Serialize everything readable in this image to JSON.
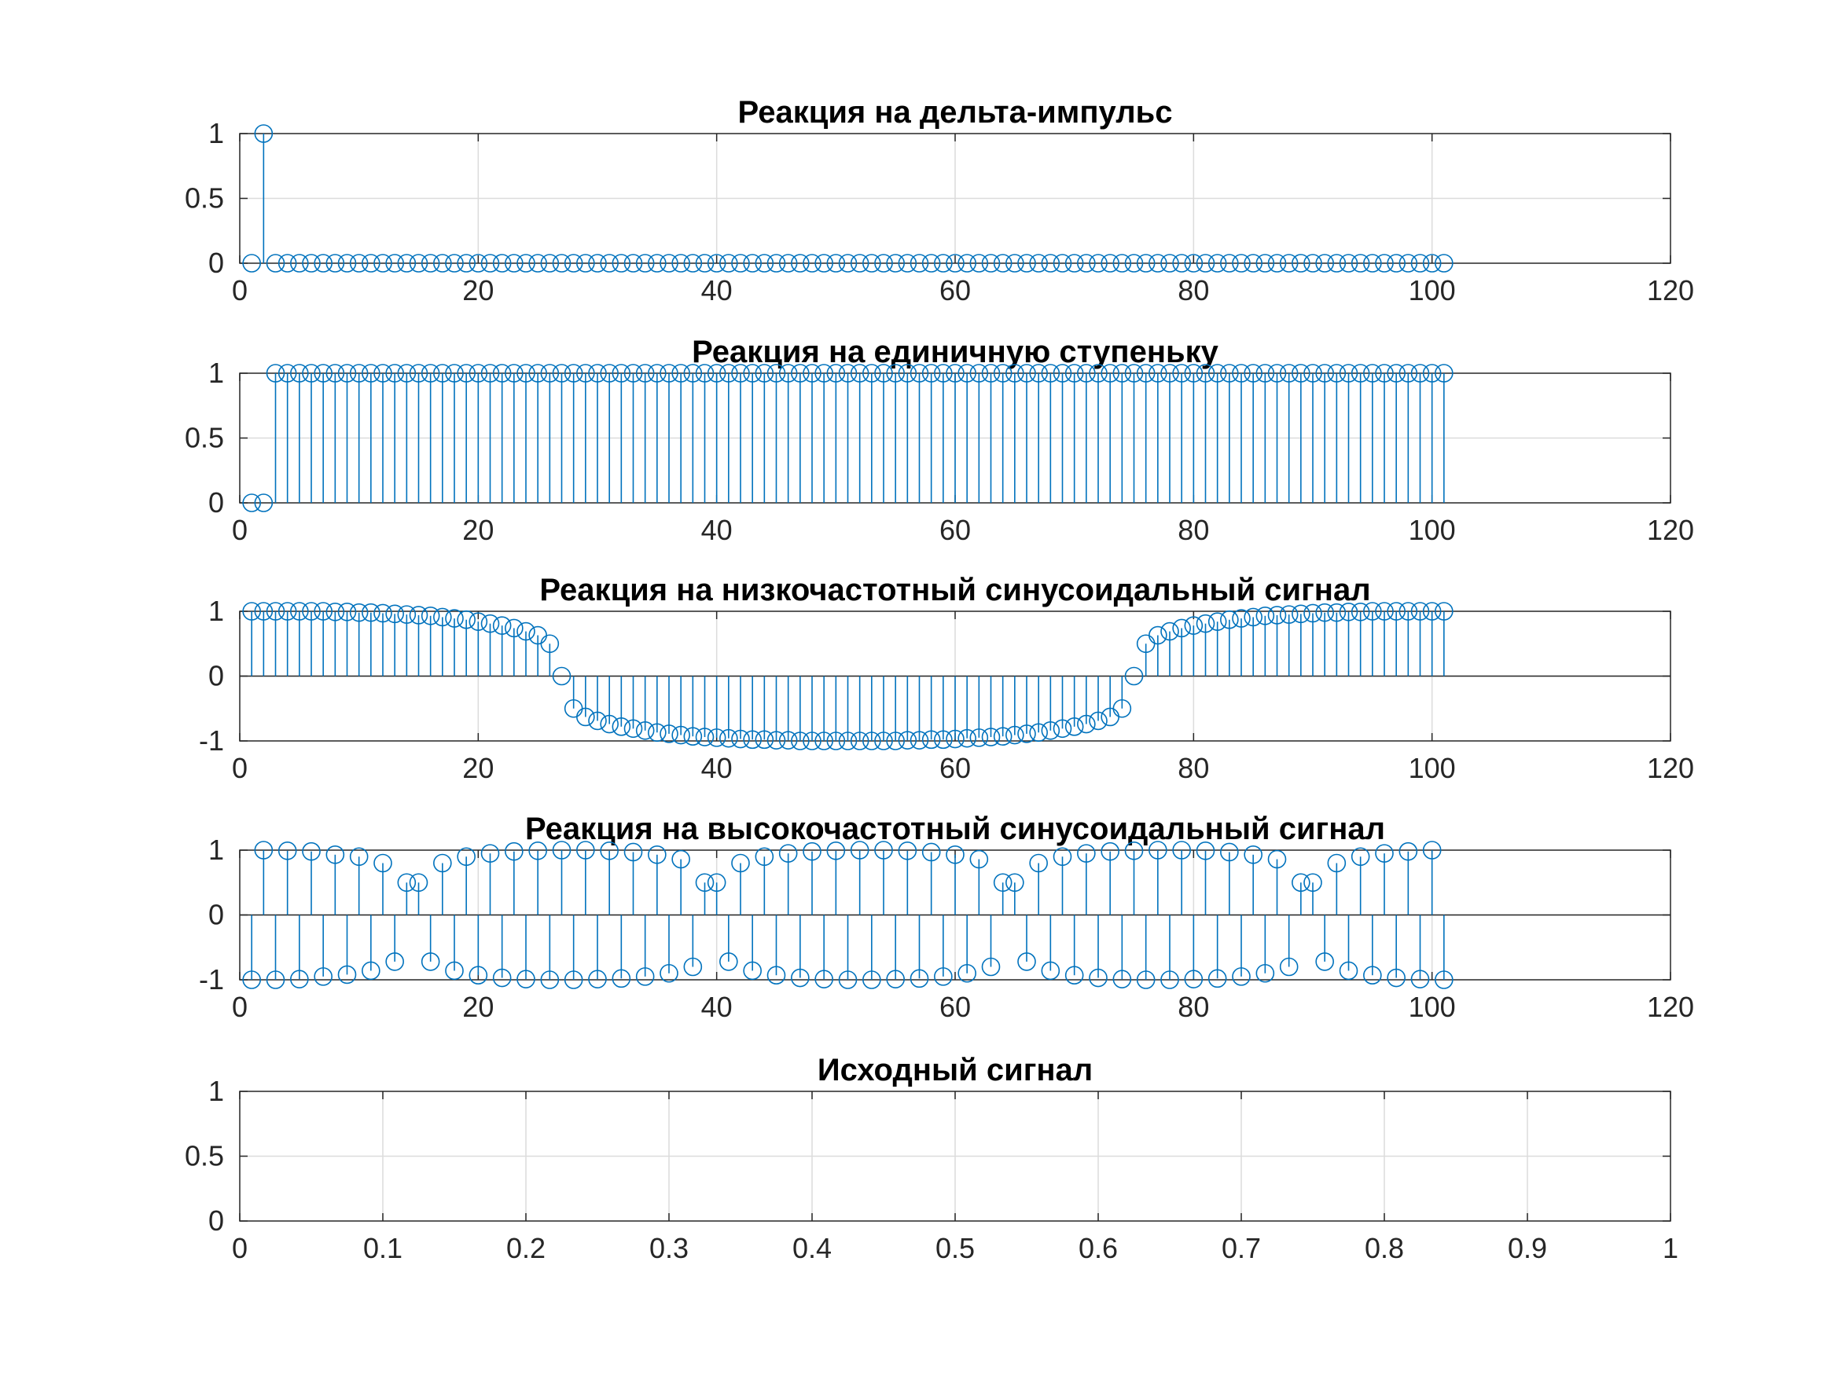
{
  "figure": {
    "background": "#ffffff",
    "series_color": "#0072bd",
    "grid_color": "#dcdcdc",
    "axis_color": "#262626"
  },
  "chart_data": [
    {
      "type": "stem",
      "title": "Реакция на дельта-импульс",
      "xlim": [
        0,
        120
      ],
      "ylim": [
        0,
        1
      ],
      "xticks": [
        "0",
        "20",
        "40",
        "60",
        "80",
        "100",
        "120"
      ],
      "yticks": [
        "0",
        "0.5",
        "1"
      ],
      "grid": true,
      "series": [
        {
          "x_start": 1,
          "x_end": 101,
          "values": [
            0,
            1
          ]
        }
      ],
      "rule": "delta: value at x=2 is 1, all others 0"
    },
    {
      "type": "stem",
      "title": "Реакция на единичную ступеньку",
      "xlim": [
        0,
        120
      ],
      "ylim": [
        0,
        1
      ],
      "xticks": [
        "0",
        "20",
        "40",
        "60",
        "80",
        "100",
        "120"
      ],
      "yticks": [
        "0",
        "0.5",
        "1"
      ],
      "grid": true,
      "series": [
        {
          "x_start": 1,
          "x_end": 101,
          "values": [
            0,
            0,
            1
          ]
        }
      ],
      "rule": "step: 0 at x=1,2; 1 for x>=3"
    },
    {
      "type": "stem",
      "title": "Реакция на низкочастотный синусоидальный сигнал",
      "xlim": [
        0,
        120
      ],
      "ylim": [
        -1,
        1
      ],
      "xticks": [
        "0",
        "20",
        "40",
        "60",
        "80",
        "100",
        "120"
      ],
      "yticks": [
        "-1",
        "0",
        "1"
      ],
      "grid": true,
      "series": [
        {
          "x_start": 1,
          "x_end": 101,
          "values": [
            1.0,
            1.0,
            1.0,
            1.0,
            1.0,
            1.0,
            1.0,
            0.99,
            0.99,
            0.98,
            0.98,
            0.97,
            0.96,
            0.95,
            0.94,
            0.93,
            0.91,
            0.89,
            0.87,
            0.84,
            0.81,
            0.78,
            0.74,
            0.69,
            0.63,
            0.5,
            0.0,
            -0.5,
            -0.63,
            -0.69,
            -0.74,
            -0.78,
            -0.81,
            -0.84,
            -0.87,
            -0.89,
            -0.91,
            -0.93,
            -0.94,
            -0.95,
            -0.96,
            -0.97,
            -0.98,
            -0.98,
            -0.99,
            -0.99,
            -1.0,
            -1.0,
            -1.0,
            -1.0,
            -1.0,
            -1.0,
            -1.0,
            -1.0,
            -1.0,
            -0.99,
            -0.99,
            -0.98,
            -0.98,
            -0.97,
            -0.96,
            -0.95,
            -0.94,
            -0.93,
            -0.91,
            -0.89,
            -0.87,
            -0.84,
            -0.81,
            -0.78,
            -0.74,
            -0.69,
            -0.63,
            -0.5,
            0.0,
            0.5,
            0.63,
            0.69,
            0.74,
            0.78,
            0.81,
            0.84,
            0.87,
            0.89,
            0.91,
            0.93,
            0.94,
            0.95,
            0.96,
            0.97,
            0.98,
            0.98,
            0.99,
            0.99,
            1.0,
            1.0,
            1.0,
            1.0,
            1.0,
            1.0,
            1.0
          ]
        }
      ]
    },
    {
      "type": "stem",
      "title": "Реакция на высокочастотный синусоидальный сигнал",
      "xlim": [
        0,
        120
      ],
      "ylim": [
        -1,
        1
      ],
      "xticks": [
        "0",
        "20",
        "40",
        "60",
        "80",
        "100",
        "120"
      ],
      "yticks": [
        "-1",
        "0",
        "1"
      ],
      "grid": true,
      "series": [
        {
          "x_start": 1,
          "x_end": 101,
          "values": [
            -1.0,
            1.0,
            -1.0,
            0.99,
            -0.99,
            0.98,
            -0.95,
            0.93,
            -0.92,
            0.9,
            -0.86,
            0.8,
            -0.72,
            0.5,
            0.5,
            -0.72,
            0.8,
            -0.86,
            0.9,
            -0.93,
            0.95,
            -0.97,
            0.98,
            -0.99,
            0.99,
            -1.0,
            1.0,
            -1.0,
            1.0,
            -0.99,
            0.99,
            -0.98,
            0.97,
            -0.95,
            0.93,
            -0.9,
            0.86,
            -0.8,
            0.5,
            0.5,
            -0.72,
            0.8,
            -0.86,
            0.9,
            -0.93,
            0.95,
            -0.97,
            0.98,
            -0.99,
            0.99,
            -1.0,
            1.0,
            -1.0,
            1.0,
            -0.99,
            0.99,
            -0.98,
            0.97,
            -0.95,
            0.93,
            -0.9,
            0.86,
            -0.8,
            0.5,
            0.5,
            -0.72,
            0.8,
            -0.86,
            0.9,
            -0.93,
            0.95,
            -0.97,
            0.98,
            -0.99,
            0.99,
            -1.0,
            1.0,
            -1.0,
            1.0,
            -0.99,
            0.99,
            -0.98,
            0.97,
            -0.95,
            0.93,
            -0.9,
            0.86,
            -0.8,
            0.5,
            0.5,
            -0.72,
            0.8,
            -0.86,
            0.9,
            -0.93,
            0.95,
            -0.97,
            0.98,
            -0.99,
            1.0,
            -1.0
          ]
        }
      ]
    },
    {
      "type": "empty",
      "title": "Исходный сигнал",
      "xlim": [
        0,
        1
      ],
      "ylim": [
        0,
        1
      ],
      "xticks": [
        "0",
        "0.1",
        "0.2",
        "0.3",
        "0.4",
        "0.5",
        "0.6",
        "0.7",
        "0.8",
        "0.9",
        "1"
      ],
      "yticks": [
        "0",
        "0.5",
        "1"
      ],
      "grid": true,
      "series": []
    }
  ]
}
